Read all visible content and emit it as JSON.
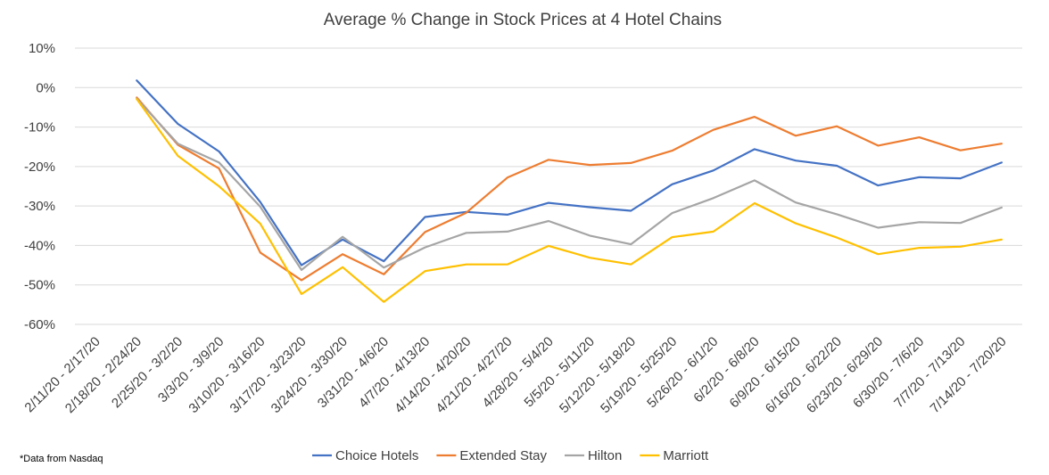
{
  "chart_data": {
    "type": "line",
    "title": "Average % Change in Stock Prices at 4 Hotel Chains",
    "xlabel": "",
    "ylabel": "",
    "ylim": [
      -60,
      10
    ],
    "yticks": [
      10,
      0,
      -10,
      -20,
      -30,
      -40,
      -50,
      -60
    ],
    "ytick_labels": [
      "10%",
      "0%",
      "-10%",
      "-20%",
      "-30%",
      "-40%",
      "-50%",
      "-60%"
    ],
    "grid": true,
    "legend_position": "bottom",
    "categories": [
      "2/11/20 - 2/17/20",
      "2/18/20 - 2/24/20",
      "2/25/20 - 3/2/20",
      "3/3/20 - 3/9/20",
      "3/10/20 - 3/16/20",
      "3/17/20 - 3/23/20",
      "3/24/20 - 3/30/20",
      "3/31/20 - 4/6/20",
      "4/7/20 - 4/13/20",
      "4/14/20 - 4/20/20",
      "4/21/20 - 4/27/20",
      "4/28/20 - 5/4/20",
      "5/5/20 - 5/11/20",
      "5/12/20 - 5/18/20",
      "5/19/20 - 5/25/20",
      "5/26/20 - 6/1/20",
      "6/2/20 - 6/8/20",
      "6/9/20 - 6/15/20",
      "6/16/20 - 6/22/20",
      "6/23/20 - 6/29/20",
      "6/30/20 - 7/6/20",
      "7/7/20 - 7/13/20",
      "7/14/20 - 7/20/20"
    ],
    "series": [
      {
        "name": "Choice Hotels",
        "color": "#4472C4",
        "values": [
          null,
          1.8,
          -9.2,
          -16.2,
          -29,
          -45,
          -38.5,
          -44,
          -32.8,
          -31.5,
          -32.2,
          -29.2,
          -30.3,
          -31.2,
          -24.5,
          -21,
          -15.6,
          -18.5,
          -19.8,
          -24.8,
          -22.7,
          -23,
          -19
        ]
      },
      {
        "name": "Extended Stay",
        "color": "#ED7D31",
        "values": [
          null,
          -2.5,
          -14.5,
          -20.5,
          -41.8,
          -48.8,
          -42.2,
          -47.3,
          -36.6,
          -31.7,
          -22.8,
          -18.3,
          -19.6,
          -19.1,
          -16,
          -10.7,
          -7.4,
          -12.2,
          -9.8,
          -14.7,
          -12.6,
          -15.9,
          -14.2
        ]
      },
      {
        "name": "Hilton",
        "color": "#A5A5A5",
        "values": [
          null,
          -2.8,
          -14.2,
          -19,
          -30.2,
          -46.2,
          -37.8,
          -45.6,
          -40.5,
          -36.8,
          -36.5,
          -33.8,
          -37.5,
          -39.7,
          -31.8,
          -28,
          -23.5,
          -29.1,
          -32.1,
          -35.5,
          -34.1,
          -34.3,
          -30.4
        ]
      },
      {
        "name": "Marriott",
        "color": "#FFC000",
        "values": [
          null,
          -2.9,
          -17.3,
          -25,
          -34.5,
          -52.3,
          -45.5,
          -54.3,
          -46.5,
          -44.8,
          -44.8,
          -40.1,
          -43.1,
          -44.8,
          -37.9,
          -36.5,
          -29.3,
          -34.4,
          -38,
          -42.2,
          -40.6,
          -40.3,
          -38.5
        ]
      }
    ],
    "footnote": "*Data  from Nasdaq"
  }
}
